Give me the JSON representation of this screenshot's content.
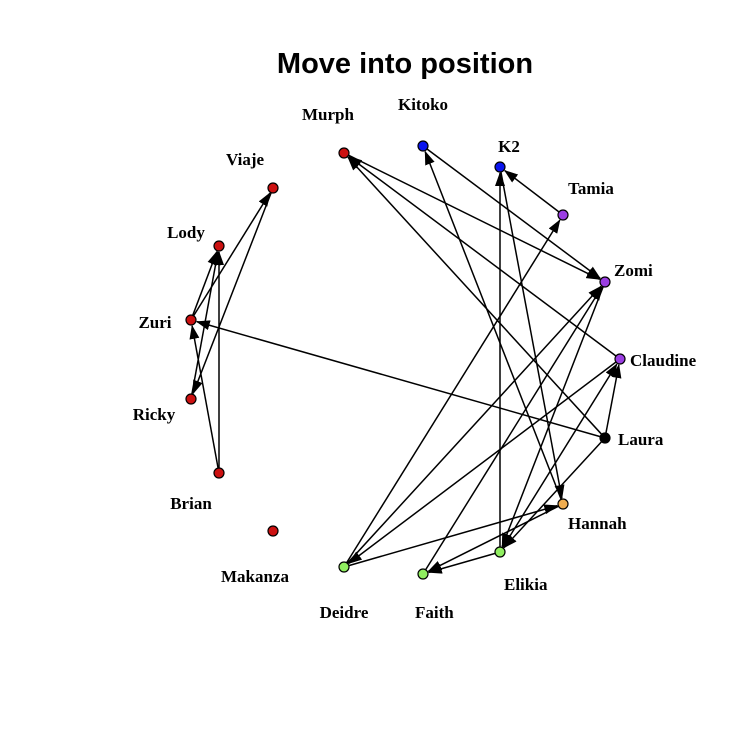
{
  "title": "Move into position",
  "colors": {
    "red": "#cc1111",
    "blue": "#0a14ee",
    "purple": "#9b3ee3",
    "black": "#000000",
    "orange": "#f0ad50",
    "green": "#90ee60"
  },
  "nodes": [
    {
      "id": "Murph",
      "label": "Murph",
      "color": "red"
    },
    {
      "id": "Kitoko",
      "label": "Kitoko",
      "color": "blue"
    },
    {
      "id": "K2",
      "label": "K2",
      "color": "blue"
    },
    {
      "id": "Tamia",
      "label": "Tamia",
      "color": "purple"
    },
    {
      "id": "Zomi",
      "label": "Zomi",
      "color": "purple"
    },
    {
      "id": "Claudine",
      "label": "Claudine",
      "color": "purple"
    },
    {
      "id": "Laura",
      "label": "Laura",
      "color": "black"
    },
    {
      "id": "Hannah",
      "label": "Hannah",
      "color": "orange"
    },
    {
      "id": "Elikia",
      "label": "Elikia",
      "color": "green"
    },
    {
      "id": "Faith",
      "label": "Faith",
      "color": "green"
    },
    {
      "id": "Deidre",
      "label": "Deidre",
      "color": "green"
    },
    {
      "id": "Makanza",
      "label": "Makanza",
      "color": "red"
    },
    {
      "id": "Brian",
      "label": "Brian",
      "color": "red"
    },
    {
      "id": "Ricky",
      "label": "Ricky",
      "color": "red"
    },
    {
      "id": "Zuri",
      "label": "Zuri",
      "color": "red"
    },
    {
      "id": "Lody",
      "label": "Lody",
      "color": "red"
    },
    {
      "id": "Viaje",
      "label": "Viaje",
      "color": "red"
    }
  ],
  "edges": [
    {
      "from": "Murph",
      "to": "Zomi"
    },
    {
      "from": "Claudine",
      "to": "Murph"
    },
    {
      "from": "Laura",
      "to": "Murph"
    },
    {
      "from": "Kitoko",
      "to": "Zomi"
    },
    {
      "from": "Hannah",
      "to": "Kitoko"
    },
    {
      "from": "Tamia",
      "to": "K2"
    },
    {
      "from": "K2",
      "to": "Hannah"
    },
    {
      "from": "Elikia",
      "to": "K2"
    },
    {
      "from": "Laura",
      "to": "Zuri"
    },
    {
      "from": "Laura",
      "to": "Claudine"
    },
    {
      "from": "Laura",
      "to": "Elikia"
    },
    {
      "from": "Elikia",
      "to": "Claudine"
    },
    {
      "from": "Claudine",
      "to": "Deidre"
    },
    {
      "from": "Deidre",
      "to": "Zomi"
    },
    {
      "from": "Deidre",
      "to": "Tamia"
    },
    {
      "from": "Deidre",
      "to": "Hannah"
    },
    {
      "from": "Zomi",
      "to": "Elikia"
    },
    {
      "from": "Faith",
      "to": "Zomi"
    },
    {
      "from": "Elikia",
      "to": "Faith"
    },
    {
      "from": "Hannah",
      "to": "Faith"
    },
    {
      "from": "Zuri",
      "to": "Viaje"
    },
    {
      "from": "Zuri",
      "to": "Lody"
    },
    {
      "from": "Ricky",
      "to": "Lody"
    },
    {
      "from": "Brian",
      "to": "Lody"
    },
    {
      "from": "Viaje",
      "to": "Ricky"
    },
    {
      "from": "Brian",
      "to": "Zuri"
    }
  ]
}
